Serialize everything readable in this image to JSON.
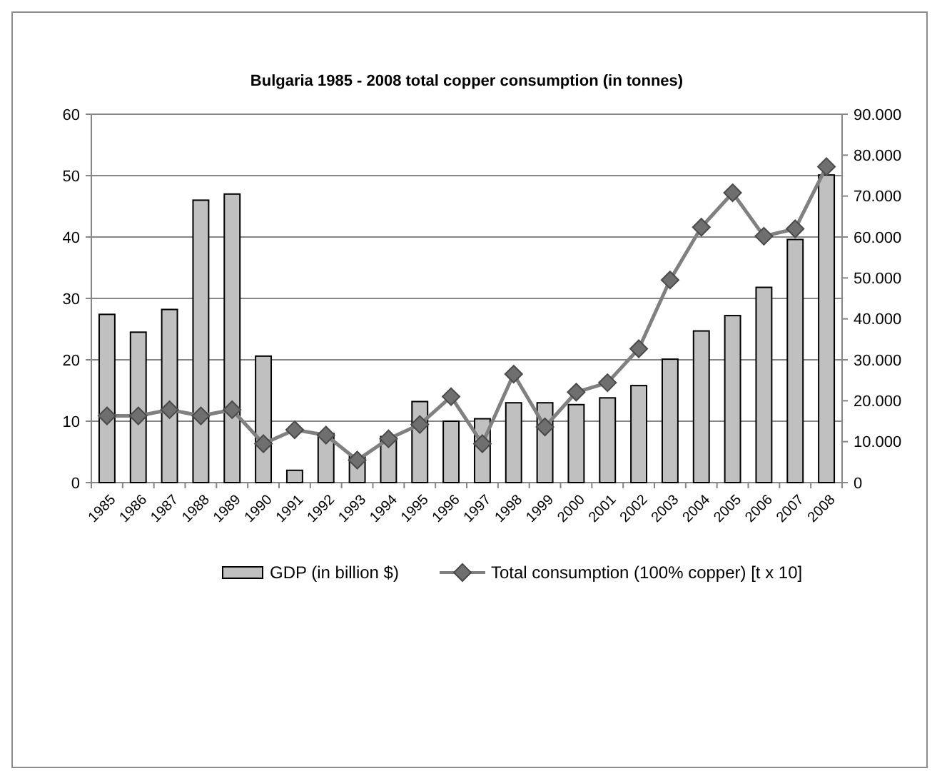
{
  "chart_data": {
    "type": "bar",
    "title": "Bulgaria 1985 - 2008  total copper  consumption (in tonnes)",
    "categories": [
      "1985",
      "1986",
      "1987",
      "1988",
      "1989",
      "1990",
      "1991",
      "1992",
      "1993",
      "1994",
      "1995",
      "1996",
      "1997",
      "1998",
      "1999",
      "2000",
      "2001",
      "2002",
      "2003",
      "2004",
      "2005",
      "2006",
      "2007",
      "2008"
    ],
    "series": [
      {
        "name": "GDP  (in billion $)",
        "color": "#c0c0c0",
        "values": [
          27.4,
          24.5,
          28.2,
          46,
          47,
          20.6,
          2,
          8,
          4.3,
          7.5,
          13.2,
          10,
          10.4,
          13,
          13,
          12.7,
          13.8,
          15.8,
          20.1,
          24.7,
          27.2,
          31.8,
          39.6,
          50.1
        ]
      },
      {
        "name": "Total consumption (100% copper) [t x 10]",
        "type": "line",
        "axis": "y2",
        "color": "#808080",
        "values": [
          16300,
          16300,
          17800,
          16300,
          17800,
          9500,
          12900,
          11600,
          5500,
          10700,
          14200,
          21000,
          9500,
          26500,
          13600,
          22100,
          24400,
          32700,
          49500,
          62400,
          70800,
          60200,
          62000,
          77200
        ]
      }
    ],
    "ylim": [
      0,
      60
    ],
    "yticks": [
      0,
      10,
      20,
      30,
      40,
      50,
      60
    ],
    "y2lim": [
      0,
      90000
    ],
    "y2ticks": [
      {
        "value": 0,
        "label": "0"
      },
      {
        "value": 10000,
        "label": "10.000"
      },
      {
        "value": 20000,
        "label": "20.000"
      },
      {
        "value": 30000,
        "label": "30.000"
      },
      {
        "value": 40000,
        "label": "40.000"
      },
      {
        "value": 50000,
        "label": "50.000"
      },
      {
        "value": 60000,
        "label": "60.000"
      },
      {
        "value": 70000,
        "label": "70.000"
      },
      {
        "value": 80000,
        "label": "80.000"
      },
      {
        "value": 90000,
        "label": "90.000"
      }
    ],
    "grid": "y",
    "legend": "bottom",
    "marker": "diamond",
    "line_style": "solid"
  }
}
